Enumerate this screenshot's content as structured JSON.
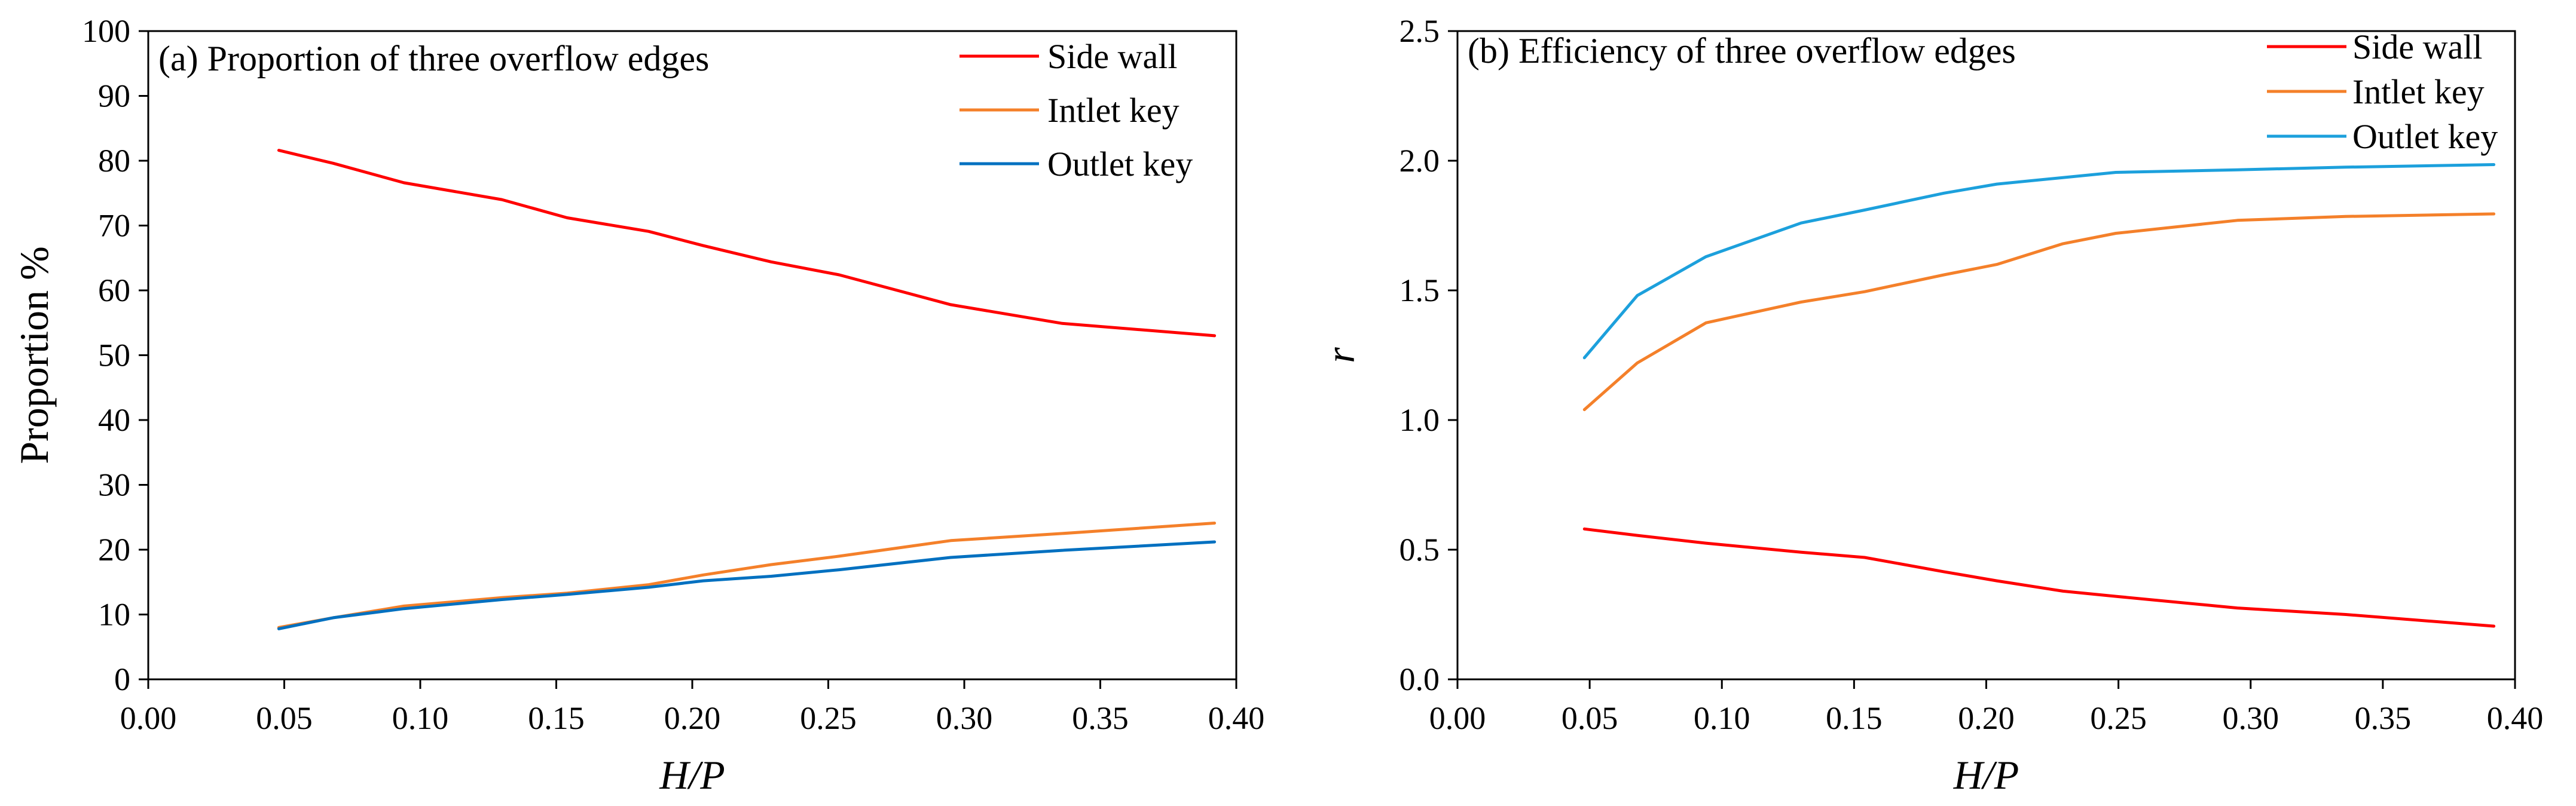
{
  "chart_data": [
    {
      "id": "a",
      "type": "line",
      "title": "(a) Proportion of three overflow edges",
      "xlabel": "H/P",
      "ylabel": "Proportion %",
      "xlim": [
        0.0,
        0.4
      ],
      "ylim": [
        0,
        100
      ],
      "x_ticks": [
        0.0,
        0.05,
        0.1,
        0.15,
        0.2,
        0.25,
        0.3,
        0.35,
        0.4
      ],
      "x_tick_labels": [
        "0.00",
        "0.05",
        "0.10",
        "0.15",
        "0.20",
        "0.25",
        "0.30",
        "0.35",
        "0.40"
      ],
      "y_ticks": [
        0,
        10,
        20,
        30,
        40,
        50,
        60,
        70,
        80,
        90,
        100
      ],
      "y_tick_labels": [
        "0",
        "10",
        "20",
        "30",
        "40",
        "50",
        "60",
        "70",
        "80",
        "90",
        "100"
      ],
      "legend_position": "top-right",
      "x": [
        0.048,
        0.068,
        0.094,
        0.13,
        0.154,
        0.184,
        0.204,
        0.229,
        0.254,
        0.295,
        0.336,
        0.392
      ],
      "series": [
        {
          "name": "Side wall",
          "color": "#ff0000",
          "values": [
            81.6,
            79.6,
            76.6,
            74.0,
            71.2,
            69.1,
            66.9,
            64.4,
            62.4,
            57.8,
            54.9,
            53.0
          ]
        },
        {
          "name": "Intlet key",
          "color": "#f4802a",
          "values": [
            8.0,
            9.5,
            11.3,
            12.6,
            13.3,
            14.6,
            16.1,
            17.7,
            19.0,
            21.4,
            22.5,
            24.1
          ]
        },
        {
          "name": "Outlet key",
          "color": "#0070c0",
          "values": [
            7.8,
            9.5,
            10.9,
            12.3,
            13.1,
            14.2,
            15.2,
            15.9,
            16.9,
            18.8,
            19.9,
            21.2
          ]
        }
      ]
    },
    {
      "id": "b",
      "type": "line",
      "title": "(b) Efficiency of three overflow edges",
      "xlabel": "H/P",
      "ylabel": "r",
      "xlim": [
        0.0,
        0.4
      ],
      "ylim": [
        0.0,
        2.5
      ],
      "x_ticks": [
        0.0,
        0.05,
        0.1,
        0.15,
        0.2,
        0.25,
        0.3,
        0.35,
        0.4
      ],
      "x_tick_labels": [
        "0.00",
        "0.05",
        "0.10",
        "0.15",
        "0.20",
        "0.25",
        "0.30",
        "0.35",
        "0.40"
      ],
      "y_ticks": [
        0.0,
        0.5,
        1.0,
        1.5,
        2.0,
        2.5
      ],
      "y_tick_labels": [
        "0.0",
        "0.5",
        "1.0",
        "1.5",
        "2.0",
        "2.5"
      ],
      "legend_position": "top-right",
      "x": [
        0.048,
        0.068,
        0.094,
        0.13,
        0.154,
        0.184,
        0.204,
        0.229,
        0.249,
        0.295,
        0.336,
        0.392
      ],
      "series": [
        {
          "name": "Side wall",
          "color": "#ff0000",
          "values": [
            0.58,
            0.555,
            0.525,
            0.49,
            0.47,
            0.415,
            0.38,
            0.34,
            0.32,
            0.275,
            0.25,
            0.205
          ]
        },
        {
          "name": "Intlet key",
          "color": "#f4802a",
          "values": [
            1.04,
            1.22,
            1.375,
            1.455,
            1.495,
            1.56,
            1.6,
            1.68,
            1.72,
            1.77,
            1.785,
            1.795
          ]
        },
        {
          "name": "Outlet key",
          "color": "#1ca0dc",
          "values": [
            1.24,
            1.48,
            1.63,
            1.76,
            1.81,
            1.875,
            1.91,
            1.935,
            1.955,
            1.965,
            1.975,
            1.985
          ]
        }
      ]
    }
  ]
}
